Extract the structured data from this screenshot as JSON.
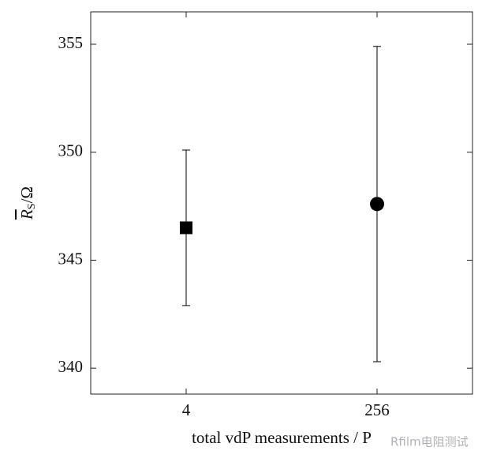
{
  "chart_data": {
    "type": "errorbar",
    "y_label": {
      "symbol": "R",
      "subscript": "S",
      "unit": "/Ω"
    },
    "x_label": "total vdP measurements / P",
    "categories": [
      "4",
      "256"
    ],
    "values": [
      346.5,
      347.6
    ],
    "errors": [
      3.6,
      7.3
    ],
    "markers": [
      "square",
      "circle"
    ],
    "color": "#000000",
    "ylim": [
      338.8,
      356.5
    ],
    "yticks": [
      340,
      345,
      350,
      355
    ],
    "watermark": "Rfilm电阻测试"
  }
}
